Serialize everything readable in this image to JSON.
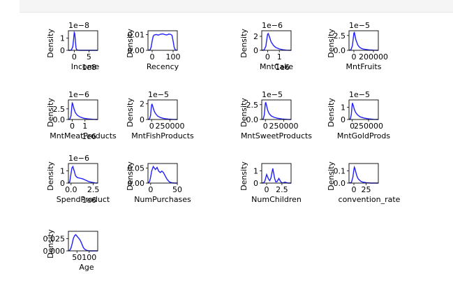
{
  "chart_data": [
    {
      "type": "line",
      "xlabel": "Income",
      "ylabel": "Density",
      "offset": "1e−8",
      "xlim": [
        -2,
        8
      ],
      "ylim": [
        0,
        1.6
      ],
      "xticks": [
        {
          "v": 0,
          "t": "0"
        },
        {
          "v": 5,
          "t": "5"
        }
      ],
      "yticks": [
        {
          "v": 0,
          "t": "0"
        },
        {
          "v": 1,
          "t": "1"
        }
      ],
      "xoffset": "1e8",
      "x": [
        -2,
        -1.5,
        -1,
        -0.5,
        -0.2,
        0,
        0.2,
        0.4,
        0.6,
        0.8,
        1.2,
        2,
        4,
        6,
        8
      ],
      "y": [
        0,
        0,
        0.02,
        0.3,
        1.0,
        1.45,
        1.35,
        0.7,
        0.2,
        0.05,
        0.01,
        0,
        0,
        0,
        0
      ]
    },
    {
      "type": "line",
      "xlabel": "Recency",
      "ylabel": "Density",
      "offset": "",
      "xlim": [
        -20,
        120
      ],
      "ylim": [
        0,
        0.0125
      ],
      "xticks": [
        {
          "v": 0,
          "t": "0"
        },
        {
          "v": 100,
          "t": "100"
        }
      ],
      "yticks": [
        {
          "v": 0,
          "t": "0.00"
        },
        {
          "v": 0.01,
          "t": "0.01"
        }
      ],
      "xoffset": "",
      "x": [
        -20,
        -10,
        -5,
        0,
        5,
        10,
        20,
        30,
        40,
        50,
        60,
        70,
        80,
        90,
        95,
        100,
        105,
        110,
        120
      ],
      "y": [
        0,
        0.0003,
        0.002,
        0.006,
        0.009,
        0.0098,
        0.0101,
        0.0097,
        0.0103,
        0.0105,
        0.0101,
        0.0098,
        0.0104,
        0.0101,
        0.0095,
        0.006,
        0.002,
        0.0003,
        0
      ]
    },
    {
      "type": "line",
      "xlabel": "MntCake",
      "ylabel": "Density",
      "offset": "1e−6",
      "xlim": [
        -0.5,
        2
      ],
      "ylim": [
        0,
        2.8
      ],
      "xticks": [
        {
          "v": 0,
          "t": "0"
        },
        {
          "v": 1,
          "t": "1"
        }
      ],
      "yticks": [
        {
          "v": 0,
          "t": "0"
        },
        {
          "v": 2,
          "t": "2"
        }
      ],
      "xoffset": "1e6",
      "x": [
        -0.5,
        -0.3,
        -0.15,
        -0.05,
        0,
        0.05,
        0.1,
        0.2,
        0.3,
        0.5,
        0.7,
        1,
        1.3,
        1.6,
        2
      ],
      "y": [
        0,
        0.05,
        0.6,
        1.8,
        2.3,
        2.4,
        2.2,
        1.7,
        1.2,
        0.7,
        0.4,
        0.2,
        0.08,
        0.02,
        0
      ]
    },
    {
      "type": "line",
      "xlabel": "MntFruits",
      "ylabel": "Density",
      "offset": "1e−5",
      "xlim": [
        -50000,
        250000
      ],
      "ylim": [
        0,
        3.3
      ],
      "xticks": [
        {
          "v": 0,
          "t": "0"
        },
        {
          "v": 200000,
          "t": "200000"
        }
      ],
      "yticks": [
        {
          "v": 0,
          "t": "0.0"
        },
        {
          "v": 2.5,
          "t": "2.5"
        }
      ],
      "xoffset": "",
      "x": [
        -50000,
        -30000,
        -15000,
        -5000,
        0,
        5000,
        10000,
        20000,
        40000,
        60000,
        80000,
        100000,
        150000,
        200000,
        250000
      ],
      "y": [
        0,
        0.1,
        0.8,
        2.2,
        2.9,
        3.0,
        2.6,
        1.8,
        0.9,
        0.5,
        0.3,
        0.2,
        0.08,
        0.02,
        0
      ]
    },
    {
      "type": "line",
      "xlabel": "MntMeatProducts",
      "ylabel": "Density",
      "offset": "1e−6",
      "xlim": [
        -0.3,
        2
      ],
      "ylim": [
        0,
        4.6
      ],
      "xticks": [
        {
          "v": 0,
          "t": "0"
        },
        {
          "v": 1,
          "t": "1"
        }
      ],
      "yticks": [
        {
          "v": 0,
          "t": "0.0"
        },
        {
          "v": 2.5,
          "t": "2.5"
        }
      ],
      "xoffset": "1e6",
      "x": [
        -0.3,
        -0.2,
        -0.1,
        -0.03,
        0,
        0.03,
        0.08,
        0.15,
        0.25,
        0.4,
        0.6,
        0.9,
        1.2,
        1.6,
        2
      ],
      "y": [
        0,
        0.05,
        0.8,
        3.0,
        3.9,
        3.8,
        3.2,
        2.4,
        1.6,
        1.0,
        0.6,
        0.3,
        0.15,
        0.05,
        0
      ]
    },
    {
      "type": "line",
      "xlabel": "MntFishProducts",
      "ylabel": "Density",
      "offset": "1e−5",
      "xlim": [
        -50000,
        350000
      ],
      "ylim": [
        0,
        2.5
      ],
      "xticks": [
        {
          "v": 0,
          "t": "0"
        },
        {
          "v": 250000,
          "t": "250000"
        }
      ],
      "yticks": [
        {
          "v": 0,
          "t": "0"
        },
        {
          "v": 2,
          "t": "2"
        }
      ],
      "xoffset": "",
      "x": [
        -50000,
        -30000,
        -15000,
        -5000,
        0,
        5000,
        15000,
        30000,
        50000,
        80000,
        120000,
        170000,
        230000,
        300000,
        350000
      ],
      "y": [
        0,
        0.05,
        0.5,
        1.5,
        1.9,
        1.95,
        1.7,
        1.2,
        0.8,
        0.45,
        0.25,
        0.12,
        0.05,
        0.01,
        0
      ]
    },
    {
      "type": "line",
      "xlabel": "MntSweetProducts",
      "ylabel": "Density",
      "offset": "1e−5",
      "xlim": [
        -50000,
        350000
      ],
      "ylim": [
        0,
        3.3
      ],
      "xticks": [
        {
          "v": 0,
          "t": "0"
        },
        {
          "v": 250000,
          "t": "250000"
        }
      ],
      "yticks": [
        {
          "v": 0,
          "t": "0.0"
        },
        {
          "v": 2.5,
          "t": "2.5"
        }
      ],
      "xoffset": "",
      "x": [
        -50000,
        -30000,
        -15000,
        -5000,
        0,
        5000,
        15000,
        30000,
        50000,
        80000,
        120000,
        170000,
        230000,
        300000,
        350000
      ],
      "y": [
        0,
        0.1,
        0.8,
        2.2,
        2.8,
        2.85,
        2.4,
        1.6,
        1.0,
        0.6,
        0.35,
        0.2,
        0.08,
        0.02,
        0
      ]
    },
    {
      "type": "line",
      "xlabel": "MntGoldProds",
      "ylabel": "Density",
      "offset": "1e−5",
      "xlim": [
        -50000,
        400000
      ],
      "ylim": [
        0,
        1.6
      ],
      "xticks": [
        {
          "v": 0,
          "t": "0"
        },
        {
          "v": 250000,
          "t": "250000"
        }
      ],
      "yticks": [
        {
          "v": 0,
          "t": "0"
        },
        {
          "v": 1,
          "t": "1"
        }
      ],
      "xoffset": "",
      "x": [
        -50000,
        -30000,
        -15000,
        -5000,
        0,
        5000,
        15000,
        30000,
        50000,
        80000,
        120000,
        180000,
        250000,
        330000,
        400000
      ],
      "y": [
        0,
        0.05,
        0.4,
        1.0,
        1.3,
        1.32,
        1.15,
        0.85,
        0.6,
        0.38,
        0.22,
        0.12,
        0.05,
        0.01,
        0
      ]
    },
    {
      "type": "line",
      "xlabel": "SpendProduct",
      "ylabel": "Density",
      "offset": "1e−6",
      "xlim": [
        -0.3,
        3
      ],
      "ylim": [
        0,
        1.6
      ],
      "xticks": [
        {
          "v": 0,
          "t": "0.0"
        },
        {
          "v": 2.5,
          "t": "2.5"
        }
      ],
      "yticks": [
        {
          "v": 0,
          "t": "0"
        },
        {
          "v": 1,
          "t": "1"
        }
      ],
      "xoffset": "1e6",
      "x": [
        -0.3,
        -0.15,
        0,
        0.1,
        0.2,
        0.35,
        0.5,
        0.7,
        1,
        1.3,
        1.6,
        2,
        2.4,
        2.7,
        3
      ],
      "y": [
        0,
        0.1,
        0.8,
        1.25,
        1.35,
        1.0,
        0.6,
        0.45,
        0.4,
        0.35,
        0.25,
        0.12,
        0.05,
        0.01,
        0
      ]
    },
    {
      "type": "line",
      "xlabel": "NumPurchases",
      "ylabel": "Density",
      "offset": "",
      "xlim": [
        -5,
        50
      ],
      "ylim": [
        0,
        0.065
      ],
      "xticks": [
        {
          "v": 0,
          "t": "0"
        },
        {
          "v": 50,
          "t": "50"
        }
      ],
      "yticks": [
        {
          "v": 0,
          "t": "0.00"
        },
        {
          "v": 0.05,
          "t": "0.05"
        }
      ],
      "xoffset": "",
      "x": [
        -5,
        -2,
        0,
        2,
        5,
        7,
        9,
        12,
        15,
        18,
        21,
        24,
        27,
        30,
        33,
        36,
        40,
        45,
        50
      ],
      "y": [
        0,
        0.005,
        0.02,
        0.04,
        0.055,
        0.05,
        0.045,
        0.052,
        0.04,
        0.035,
        0.04,
        0.035,
        0.025,
        0.015,
        0.008,
        0.003,
        0.001,
        0,
        0
      ]
    },
    {
      "type": "line",
      "xlabel": "NumChildren",
      "ylabel": "Density",
      "offset": "",
      "xlim": [
        -0.8,
        4
      ],
      "ylim": [
        0,
        1.6
      ],
      "xticks": [
        {
          "v": 0,
          "t": "0"
        },
        {
          "v": 2.5,
          "t": "2.5"
        }
      ],
      "yticks": [
        {
          "v": 0,
          "t": "0"
        },
        {
          "v": 1,
          "t": "1"
        }
      ],
      "xoffset": "",
      "x": [
        -0.8,
        -0.5,
        -0.3,
        0,
        0.3,
        0.5,
        0.7,
        1,
        1.3,
        1.5,
        1.7,
        2,
        2.3,
        2.5,
        2.7,
        3,
        3.3,
        3.6,
        4
      ],
      "y": [
        0,
        0.02,
        0.15,
        0.7,
        0.35,
        0.2,
        0.4,
        1.2,
        0.4,
        0.1,
        0.12,
        0.38,
        0.12,
        0.02,
        0.01,
        0.08,
        0.02,
        0,
        0
      ]
    },
    {
      "type": "line",
      "xlabel": "convention_rate",
      "ylabel": "Density",
      "offset": "",
      "xlim": [
        -10,
        50
      ],
      "ylim": [
        0,
        0.16
      ],
      "xticks": [
        {
          "v": 0,
          "t": "0"
        },
        {
          "v": 25,
          "t": "25"
        }
      ],
      "yticks": [
        {
          "v": 0,
          "t": "0.0"
        },
        {
          "v": 0.1,
          "t": "0.1"
        }
      ],
      "xoffset": "",
      "x": [
        -10,
        -5,
        -2,
        0,
        1,
        2,
        4,
        6,
        8,
        10,
        14,
        18,
        25,
        35,
        50
      ],
      "y": [
        0,
        0.005,
        0.05,
        0.11,
        0.13,
        0.12,
        0.09,
        0.06,
        0.04,
        0.03,
        0.015,
        0.008,
        0.003,
        0,
        0
      ]
    },
    {
      "type": "line",
      "xlabel": "Age",
      "ylabel": "Density",
      "offset": "",
      "xlim": [
        15,
        135
      ],
      "ylim": [
        0,
        0.04
      ],
      "xticks": [
        {
          "v": 50,
          "t": "50"
        },
        {
          "v": 100,
          "t": "100"
        }
      ],
      "yticks": [
        {
          "v": 0,
          "t": "0.000"
        },
        {
          "v": 0.025,
          "t": "0.025"
        }
      ],
      "xoffset": "",
      "x": [
        15,
        20,
        25,
        30,
        35,
        40,
        45,
        50,
        55,
        60,
        65,
        70,
        75,
        80,
        90,
        100,
        110,
        120,
        135
      ],
      "y": [
        0,
        0.001,
        0.005,
        0.014,
        0.025,
        0.031,
        0.033,
        0.03,
        0.027,
        0.024,
        0.02,
        0.014,
        0.008,
        0.004,
        0.001,
        0,
        0,
        0,
        0
      ]
    }
  ]
}
